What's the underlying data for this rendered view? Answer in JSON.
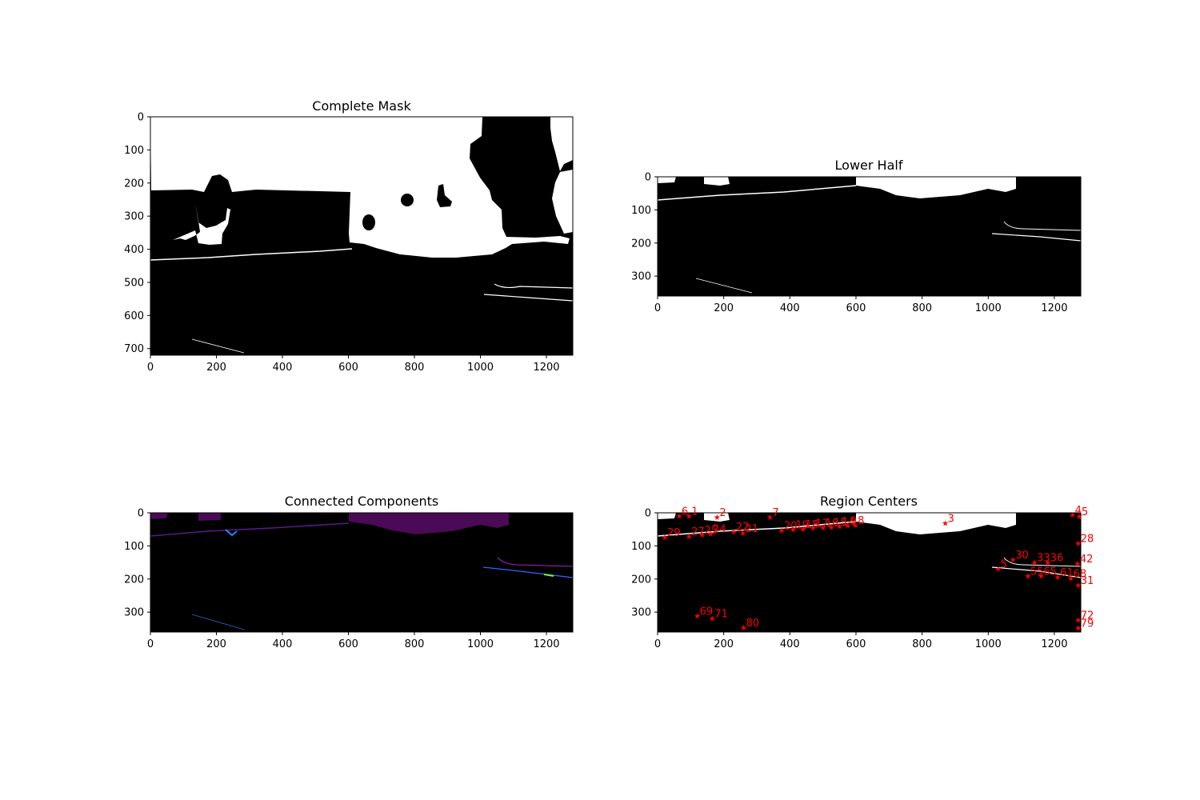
{
  "figure": {
    "panels": [
      {
        "id": "complete",
        "title": "Complete Mask",
        "xticks": [
          "0",
          "200",
          "400",
          "600",
          "800",
          "1000",
          "1200"
        ],
        "yticks": [
          "0",
          "100",
          "200",
          "300",
          "400",
          "500",
          "600",
          "700"
        ],
        "background": "#000000",
        "foreground": "#ffffff"
      },
      {
        "id": "lower",
        "title": "Lower Half",
        "xticks": [
          "0",
          "200",
          "400",
          "600",
          "800",
          "1000",
          "1200"
        ],
        "yticks": [
          "0",
          "100",
          "200",
          "300"
        ],
        "background": "#000000",
        "foreground": "#ffffff"
      },
      {
        "id": "components",
        "title": "Connected Components",
        "xticks": [
          "0",
          "200",
          "400",
          "600",
          "800",
          "1000",
          "1200"
        ],
        "yticks": [
          "0",
          "100",
          "200",
          "300"
        ],
        "background": "#000000",
        "region_color": "#4b0a55"
      },
      {
        "id": "centers",
        "title": "Region Centers",
        "xticks": [
          "0",
          "200",
          "400",
          "600",
          "800",
          "1000",
          "1200"
        ],
        "yticks": [
          "0",
          "100",
          "200",
          "300"
        ],
        "background": "#000000",
        "marker_color": "#ff0000"
      }
    ]
  },
  "chart_data": [
    {
      "type": "heatmap",
      "title": "Complete Mask",
      "xlim": [
        0,
        1280
      ],
      "ylim": [
        720,
        0
      ],
      "xticks": [
        0,
        200,
        400,
        600,
        800,
        1000,
        1200
      ],
      "yticks": [
        0,
        100,
        200,
        300,
        400,
        500,
        600,
        700
      ],
      "description_values": "binary mask"
    },
    {
      "type": "heatmap",
      "title": "Lower Half",
      "xlim": [
        0,
        1280
      ],
      "ylim": [
        360,
        0
      ],
      "xticks": [
        0,
        200,
        400,
        600,
        800,
        1000,
        1200
      ],
      "yticks": [
        0,
        100,
        200,
        300
      ]
    },
    {
      "type": "heatmap",
      "title": "Connected Components",
      "xlim": [
        0,
        1280
      ],
      "ylim": [
        360,
        0
      ],
      "xticks": [
        0,
        200,
        400,
        600,
        800,
        1000,
        1200
      ],
      "yticks": [
        0,
        100,
        200,
        300
      ]
    },
    {
      "type": "scatter",
      "title": "Region Centers",
      "xlim": [
        0,
        1280
      ],
      "ylim": [
        360,
        0
      ],
      "xticks": [
        0,
        200,
        400,
        600,
        800,
        1000,
        1200
      ],
      "yticks": [
        0,
        100,
        200,
        300
      ],
      "points": [
        {
          "label": "6",
          "x": 65,
          "y": 8
        },
        {
          "label": "1",
          "x": 95,
          "y": 8
        },
        {
          "label": "2",
          "x": 180,
          "y": 12
        },
        {
          "label": "7",
          "x": 340,
          "y": 12
        },
        {
          "label": "3",
          "x": 870,
          "y": 30
        },
        {
          "label": "4",
          "x": 1255,
          "y": 5
        },
        {
          "label": "5",
          "x": 1275,
          "y": 10
        },
        {
          "label": "29",
          "x": 22,
          "y": 72
        },
        {
          "label": "27",
          "x": 95,
          "y": 70
        },
        {
          "label": "25",
          "x": 135,
          "y": 65
        },
        {
          "label": "24",
          "x": 160,
          "y": 62
        },
        {
          "label": "22",
          "x": 230,
          "y": 55
        },
        {
          "label": "21",
          "x": 258,
          "y": 60
        },
        {
          "label": "20",
          "x": 375,
          "y": 52
        },
        {
          "label": "19",
          "x": 410,
          "y": 50
        },
        {
          "label": "18",
          "x": 440,
          "y": 48
        },
        {
          "label": "17",
          "x": 470,
          "y": 45
        },
        {
          "label": "16",
          "x": 500,
          "y": 44
        },
        {
          "label": "15",
          "x": 525,
          "y": 42
        },
        {
          "label": "14",
          "x": 550,
          "y": 40
        },
        {
          "label": "9",
          "x": 575,
          "y": 38
        },
        {
          "label": "8",
          "x": 598,
          "y": 36
        },
        {
          "label": "28",
          "x": 1272,
          "y": 90
        },
        {
          "label": "30",
          "x": 1075,
          "y": 140
        },
        {
          "label": "33",
          "x": 1140,
          "y": 148
        },
        {
          "label": "36",
          "x": 1180,
          "y": 148
        },
        {
          "label": "42",
          "x": 1270,
          "y": 152
        },
        {
          "label": "5",
          "x": 1030,
          "y": 168
        },
        {
          "label": "55",
          "x": 1120,
          "y": 190
        },
        {
          "label": "65",
          "x": 1160,
          "y": 190
        },
        {
          "label": "61",
          "x": 1210,
          "y": 193
        },
        {
          "label": "68",
          "x": 1250,
          "y": 197
        },
        {
          "label": "31",
          "x": 1272,
          "y": 218
        },
        {
          "label": "69",
          "x": 120,
          "y": 310
        },
        {
          "label": "71",
          "x": 165,
          "y": 318
        },
        {
          "label": "80",
          "x": 260,
          "y": 345
        },
        {
          "label": "72",
          "x": 1272,
          "y": 322
        },
        {
          "label": "79",
          "x": 1272,
          "y": 347
        }
      ]
    }
  ]
}
